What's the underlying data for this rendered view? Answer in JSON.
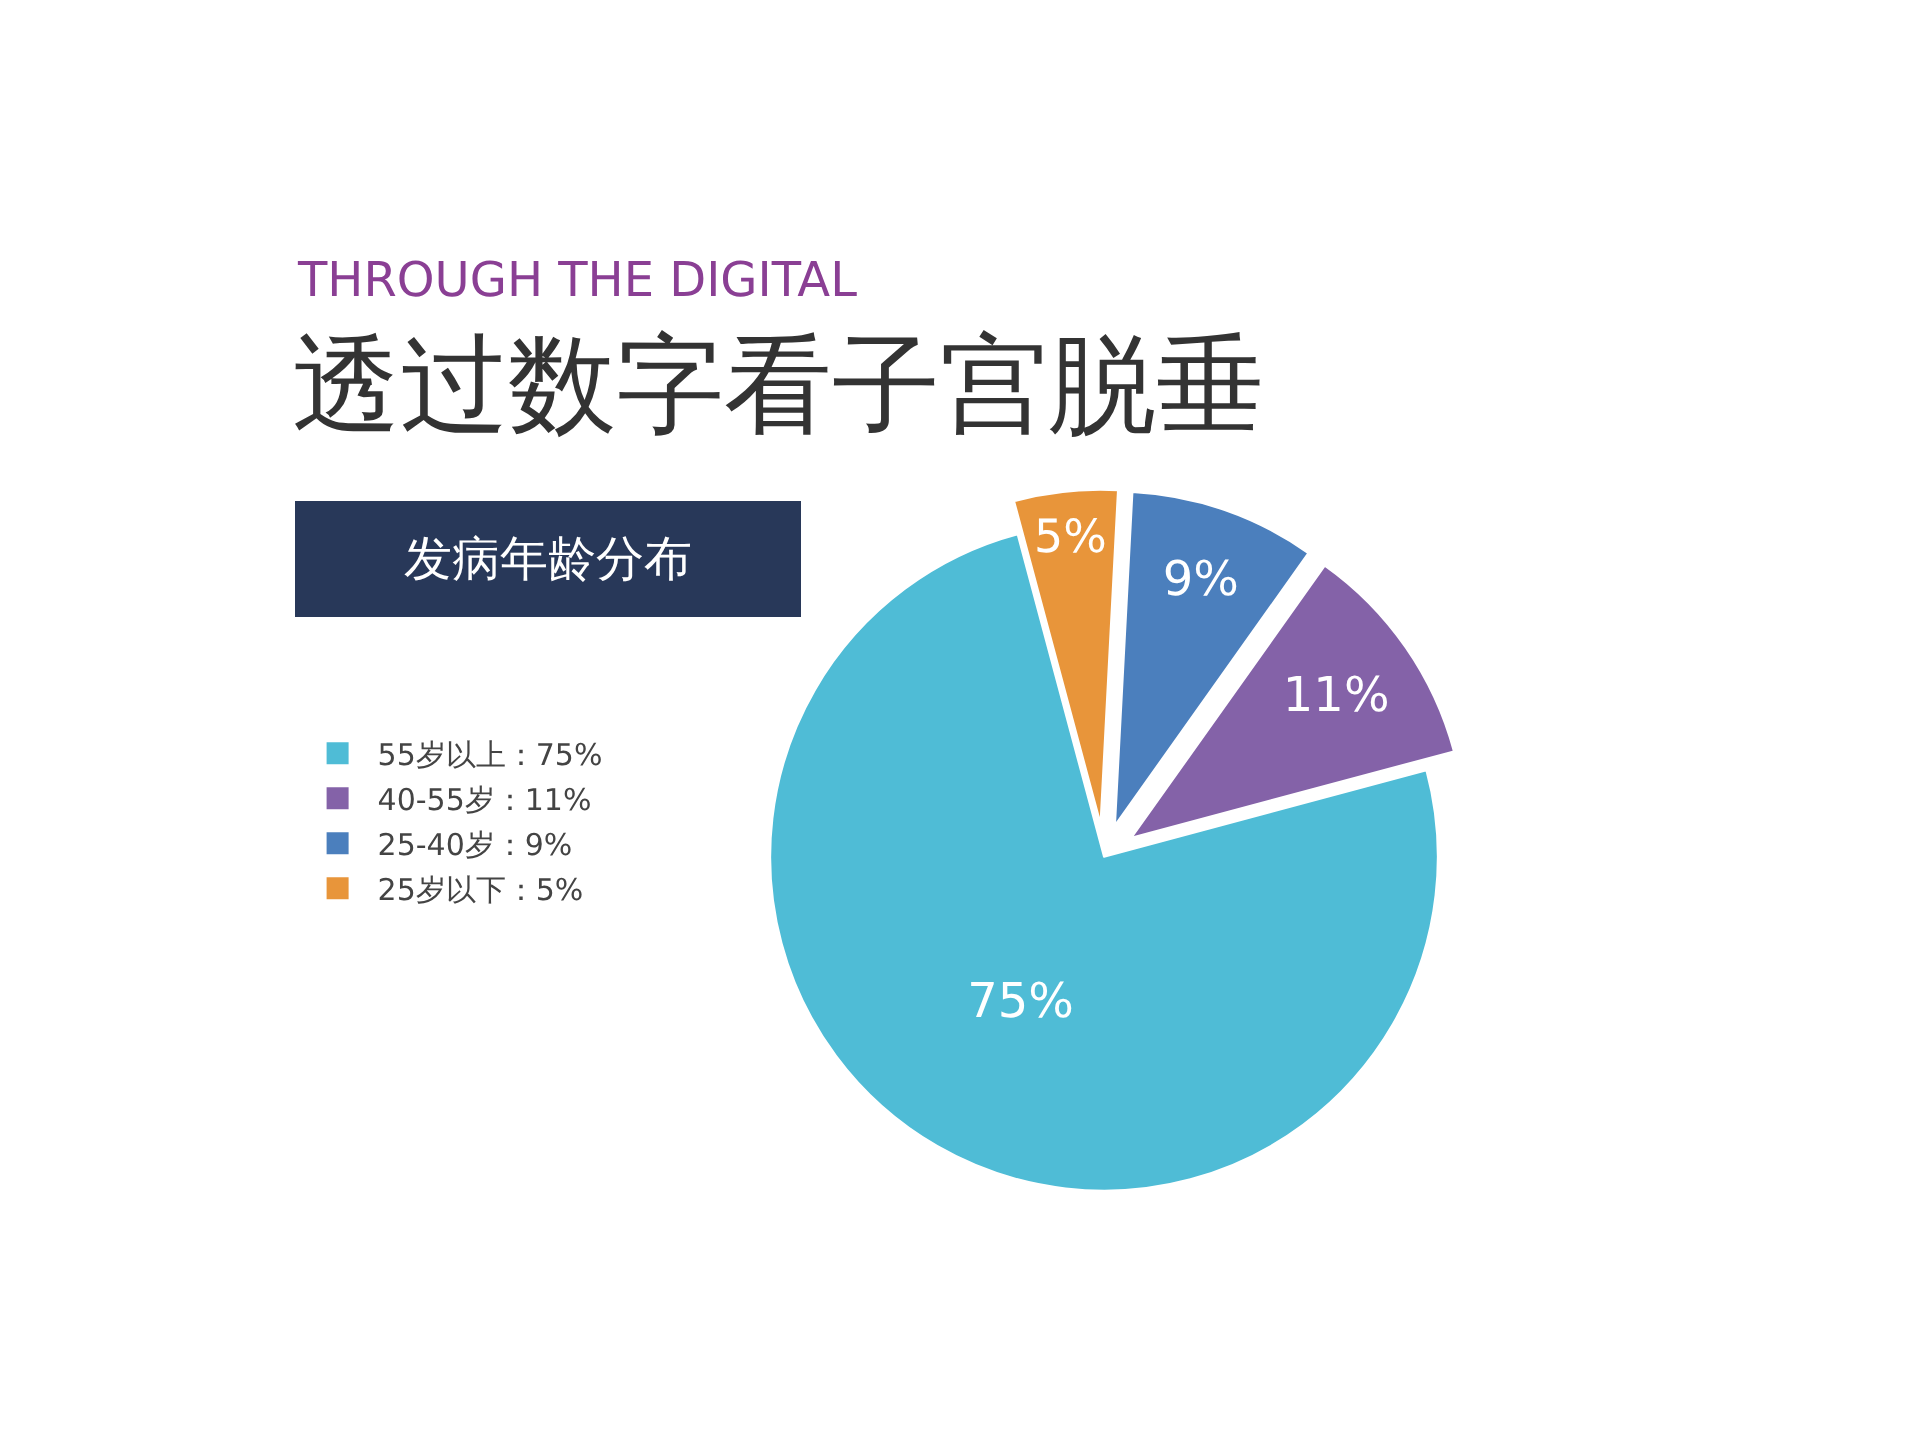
{
  "chart_data": {
    "type": "pie",
    "title": "透过数字看子宫脱垂",
    "subtitle": "THROUGH THE DIGITAL",
    "annotations": [
      "发病年龄分布"
    ],
    "categories": [
      "55岁以上：75%",
      "40-55岁：11%",
      "25-40岁：9%",
      "25岁以下：5%"
    ],
    "values": [
      75,
      11,
      9,
      5
    ],
    "colors": [
      "#4fbcd6",
      "#8462a8",
      "#4b7fbd",
      "#e8953a"
    ],
    "value_labels": [
      "75%",
      "11%",
      "9%",
      "5%"
    ],
    "legend": "left"
  }
}
